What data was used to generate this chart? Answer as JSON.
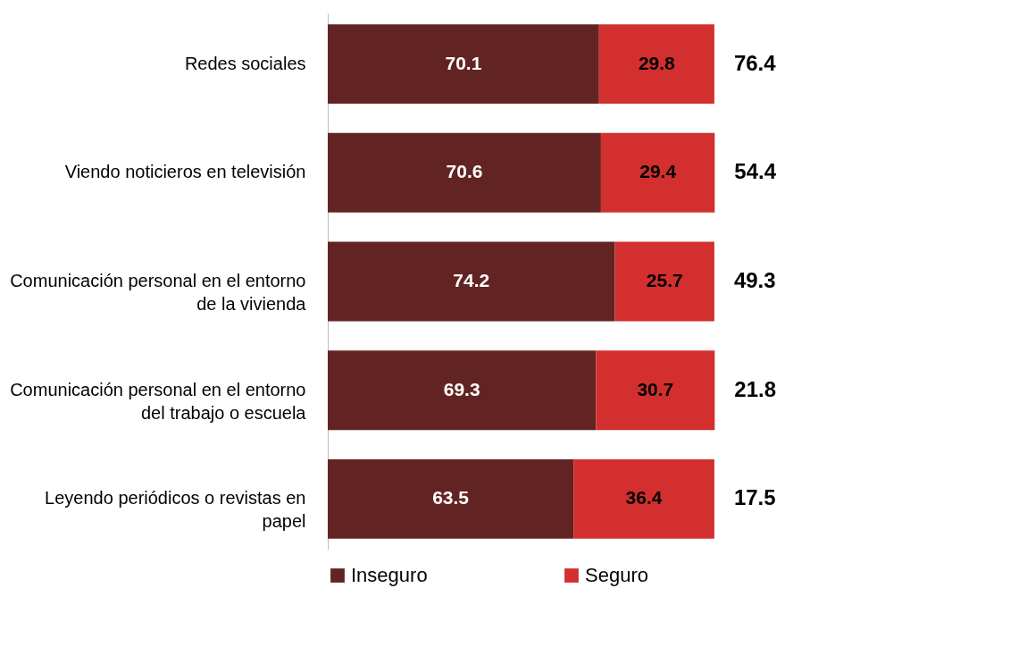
{
  "chart_data": {
    "type": "bar",
    "orientation": "horizontal",
    "stacked": true,
    "data_labels": true,
    "legend": "bottom",
    "grid": false,
    "categories": [
      "Redes sociales",
      "Viendo noticieros en televisión",
      "Comunicación personal en el entorno de la vivienda",
      "Comunicación personal en el entorno del trabajo o escuela",
      "Leyendo periódicos o revistas en papel"
    ],
    "series": [
      {
        "name": "Inseguro",
        "color": "#622423",
        "values": [
          70.1,
          70.6,
          74.2,
          69.3,
          63.5
        ]
      },
      {
        "name": "Seguro",
        "color": "#d32f2f",
        "values": [
          29.8,
          29.4,
          25.7,
          30.7,
          36.4
        ]
      }
    ],
    "annotations": [
      "76.4",
      "54.4",
      "49.3",
      "21.8",
      "17.5"
    ]
  }
}
